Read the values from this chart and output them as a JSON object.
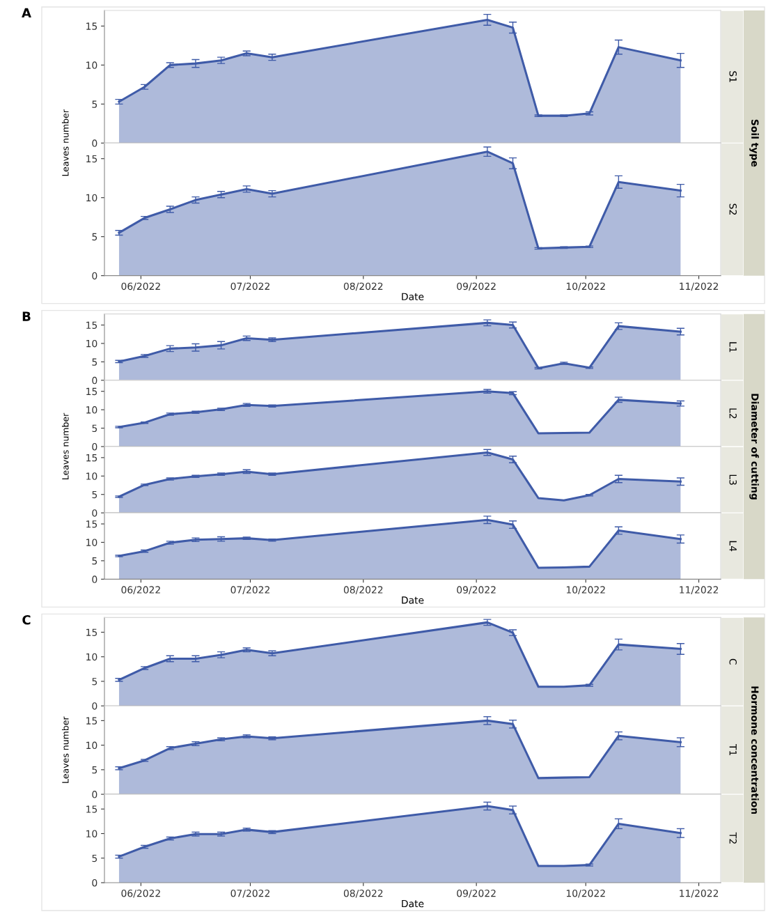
{
  "chart_data": [
    {
      "type": "area",
      "y2label": "S1",
      "ylabel": "Leaves number",
      "annotations": [
        "A",
        "Soil type"
      ],
      "x": [
        "2022-05-26",
        "2022-06-02",
        "2022-06-09",
        "2022-06-16",
        "2022-06-23",
        "2022-06-30",
        "2022-07-07",
        "2022-09-04",
        "2022-09-11",
        "2022-09-18",
        "2022-09-25",
        "2022-10-02",
        "2022-10-10",
        "2022-10-27"
      ],
      "xlim": [
        "2022-05-22",
        "2022-11-07"
      ],
      "ylim": [
        0,
        17
      ],
      "yticks": [
        0,
        5,
        10,
        15
      ],
      "tick_labels": "y",
      "series": [
        {
          "color": "#3f5ba8",
          "values": [
            5.3,
            7.2,
            10.0,
            10.2,
            10.6,
            11.5,
            11.0,
            15.8,
            14.8,
            3.5,
            3.5,
            3.8,
            12.3,
            10.6
          ],
          "errors": [
            0.3,
            0.3,
            0.3,
            0.5,
            0.4,
            0.3,
            0.4,
            0.7,
            0.7,
            0.1,
            0.1,
            0.2,
            0.9,
            0.9
          ]
        }
      ]
    },
    {
      "type": "area",
      "y2label": "S2",
      "xlabel": "Date",
      "x": [
        "2022-05-26",
        "2022-06-02",
        "2022-06-09",
        "2022-06-16",
        "2022-06-23",
        "2022-06-30",
        "2022-07-07",
        "2022-09-04",
        "2022-09-11",
        "2022-09-18",
        "2022-09-25",
        "2022-10-02",
        "2022-10-10",
        "2022-10-27"
      ],
      "xlim": [
        "2022-05-22",
        "2022-11-07"
      ],
      "xticks": [
        {
          "value": "2022-06",
          "label": "06/2022"
        },
        {
          "value": "2022-07",
          "label": "07/2022"
        },
        {
          "value": "2022-08",
          "label": "08/2022"
        },
        {
          "value": "2022-09",
          "label": "09/2022"
        },
        {
          "value": "2022-10",
          "label": "10/2022"
        },
        {
          "value": "2022-11",
          "label": "11/2022"
        }
      ],
      "ylim": [
        0,
        17
      ],
      "yticks": [
        0,
        5,
        10,
        15
      ],
      "series": [
        {
          "color": "#3f5ba8",
          "values": [
            5.5,
            7.4,
            8.5,
            9.7,
            10.4,
            11.1,
            10.5,
            15.9,
            14.4,
            3.5,
            3.6,
            3.7,
            12.0,
            10.9
          ],
          "errors": [
            0.3,
            0.2,
            0.4,
            0.4,
            0.4,
            0.4,
            0.4,
            0.6,
            0.7,
            0.1,
            0.1,
            0.1,
            0.8,
            0.8
          ]
        }
      ]
    },
    {
      "type": "area",
      "y2label": "L1",
      "ylabel": "Leaves number",
      "annotations": [
        "B",
        "Diameter of cutting"
      ],
      "x": [
        "2022-05-26",
        "2022-06-02",
        "2022-06-09",
        "2022-06-16",
        "2022-06-23",
        "2022-06-30",
        "2022-07-07",
        "2022-09-04",
        "2022-09-11",
        "2022-09-18",
        "2022-09-25",
        "2022-10-02",
        "2022-10-10",
        "2022-10-27"
      ],
      "xlim": [
        "2022-05-22",
        "2022-11-07"
      ],
      "ylim": [
        0,
        18
      ],
      "yticks": [
        0,
        5,
        10,
        15
      ],
      "tick_labels": "y",
      "series": [
        {
          "color": "#3f5ba8",
          "values": [
            5.1,
            6.6,
            8.6,
            8.9,
            9.5,
            11.4,
            11.0,
            15.6,
            15.0,
            3.3,
            4.6,
            3.4,
            14.7,
            13.2
          ],
          "errors": [
            0.3,
            0.4,
            0.8,
            1.0,
            1.0,
            0.6,
            0.5,
            0.8,
            0.8,
            0.2,
            0.3,
            0.2,
            0.9,
            0.9
          ]
        }
      ]
    },
    {
      "type": "area",
      "y2label": "L2",
      "x": [
        "2022-05-26",
        "2022-06-02",
        "2022-06-09",
        "2022-06-16",
        "2022-06-23",
        "2022-06-30",
        "2022-07-07",
        "2022-09-04",
        "2022-09-11",
        "2022-09-18",
        "2022-09-25",
        "2022-10-02",
        "2022-10-10",
        "2022-10-27"
      ],
      "xlim": [
        "2022-05-22",
        "2022-11-07"
      ],
      "ylim": [
        0,
        18
      ],
      "yticks": [
        0,
        5,
        10,
        15
      ],
      "tick_labels": "y",
      "series": [
        {
          "color": "#3f5ba8",
          "values": [
            5.3,
            6.5,
            8.8,
            9.3,
            10.1,
            11.3,
            11.0,
            15.0,
            14.5,
            3.6,
            3.7,
            3.8,
            12.7,
            11.7
          ],
          "errors": [
            0.2,
            0.2,
            0.3,
            0.3,
            0.3,
            0.4,
            0.3,
            0.5,
            0.4,
            null,
            null,
            null,
            0.7,
            0.7
          ]
        }
      ]
    },
    {
      "type": "area",
      "y2label": "L3",
      "x": [
        "2022-05-26",
        "2022-06-02",
        "2022-06-09",
        "2022-06-16",
        "2022-06-23",
        "2022-06-30",
        "2022-07-07",
        "2022-09-04",
        "2022-09-11",
        "2022-09-18",
        "2022-09-25",
        "2022-10-02",
        "2022-10-10",
        "2022-10-27"
      ],
      "xlim": [
        "2022-05-22",
        "2022-11-07"
      ],
      "ylim": [
        0,
        18
      ],
      "yticks": [
        0,
        5,
        10,
        15
      ],
      "tick_labels": "y",
      "series": [
        {
          "color": "#3f5ba8",
          "values": [
            4.4,
            7.6,
            9.2,
            9.9,
            10.5,
            11.2,
            10.5,
            16.4,
            14.5,
            4.0,
            3.4,
            4.8,
            9.2,
            8.5
          ],
          "errors": [
            0.2,
            0.2,
            0.3,
            0.3,
            0.3,
            0.5,
            0.3,
            0.8,
            0.9,
            null,
            null,
            0.2,
            1.0,
            1.0
          ]
        }
      ]
    },
    {
      "type": "area",
      "y2label": "L4",
      "xlabel": "Date",
      "x": [
        "2022-05-26",
        "2022-06-02",
        "2022-06-09",
        "2022-06-16",
        "2022-06-23",
        "2022-06-30",
        "2022-07-07",
        "2022-09-04",
        "2022-09-11",
        "2022-09-18",
        "2022-09-25",
        "2022-10-02",
        "2022-10-10",
        "2022-10-27"
      ],
      "xlim": [
        "2022-05-22",
        "2022-11-07"
      ],
      "xticks": [
        {
          "value": "2022-06",
          "label": "06/2022"
        },
        {
          "value": "2022-07",
          "label": "07/2022"
        },
        {
          "value": "2022-08",
          "label": "08/2022"
        },
        {
          "value": "2022-09",
          "label": "09/2022"
        },
        {
          "value": "2022-10",
          "label": "10/2022"
        },
        {
          "value": "2022-11",
          "label": "11/2022"
        }
      ],
      "ylim": [
        0,
        18
      ],
      "yticks": [
        0,
        5,
        10,
        15
      ],
      "series": [
        {
          "color": "#3f5ba8",
          "values": [
            6.3,
            7.6,
            9.9,
            10.7,
            10.9,
            11.1,
            10.6,
            16.1,
            14.8,
            3.1,
            3.2,
            3.4,
            13.2,
            10.9
          ],
          "errors": [
            0.2,
            0.3,
            0.4,
            0.5,
            0.6,
            0.3,
            0.3,
            1.0,
            1.0,
            null,
            null,
            null,
            1.0,
            1.1
          ]
        }
      ]
    },
    {
      "type": "area",
      "y2label": "C",
      "ylabel": "Leaves number",
      "annotations": [
        "C",
        "Hormone concentration"
      ],
      "x": [
        "2022-05-26",
        "2022-06-02",
        "2022-06-09",
        "2022-06-16",
        "2022-06-23",
        "2022-06-30",
        "2022-07-07",
        "2022-09-04",
        "2022-09-11",
        "2022-09-18",
        "2022-09-25",
        "2022-10-02",
        "2022-10-10",
        "2022-10-27"
      ],
      "xlim": [
        "2022-05-22",
        "2022-11-07"
      ],
      "ylim": [
        0,
        18
      ],
      "yticks": [
        0,
        5,
        10,
        15
      ],
      "tick_labels": "y",
      "series": [
        {
          "color": "#3f5ba8",
          "values": [
            5.3,
            7.7,
            9.6,
            9.6,
            10.4,
            11.4,
            10.7,
            17.0,
            14.9,
            3.9,
            3.9,
            4.2,
            12.5,
            11.6
          ],
          "errors": [
            0.3,
            0.3,
            0.6,
            0.6,
            0.6,
            0.4,
            0.5,
            0.6,
            0.6,
            null,
            null,
            0.2,
            1.1,
            1.1
          ]
        }
      ]
    },
    {
      "type": "area",
      "y2label": "T1",
      "x": [
        "2022-05-26",
        "2022-06-02",
        "2022-06-09",
        "2022-06-16",
        "2022-06-23",
        "2022-06-30",
        "2022-07-07",
        "2022-09-04",
        "2022-09-11",
        "2022-09-18",
        "2022-09-25",
        "2022-10-02",
        "2022-10-10",
        "2022-10-27"
      ],
      "xlim": [
        "2022-05-22",
        "2022-11-07"
      ],
      "ylim": [
        0,
        18
      ],
      "yticks": [
        0,
        5,
        10,
        15
      ],
      "tick_labels": "y",
      "series": [
        {
          "color": "#3f5ba8",
          "values": [
            5.3,
            6.9,
            9.4,
            10.3,
            11.2,
            11.8,
            11.4,
            15.0,
            14.3,
            3.3,
            3.4,
            3.5,
            11.9,
            10.6
          ],
          "errors": [
            0.3,
            0.2,
            0.3,
            0.4,
            0.3,
            0.3,
            0.3,
            0.8,
            0.8,
            null,
            null,
            null,
            0.8,
            0.9
          ]
        }
      ]
    },
    {
      "type": "area",
      "y2label": "T2",
      "xlabel": "Date",
      "x": [
        "2022-05-26",
        "2022-06-02",
        "2022-06-09",
        "2022-06-16",
        "2022-06-23",
        "2022-06-30",
        "2022-07-07",
        "2022-09-04",
        "2022-09-11",
        "2022-09-18",
        "2022-09-25",
        "2022-10-02",
        "2022-10-10",
        "2022-10-27"
      ],
      "xlim": [
        "2022-05-22",
        "2022-11-07"
      ],
      "xticks": [
        {
          "value": "2022-06",
          "label": "06/2022"
        },
        {
          "value": "2022-07",
          "label": "07/2022"
        },
        {
          "value": "2022-08",
          "label": "08/2022"
        },
        {
          "value": "2022-09",
          "label": "09/2022"
        },
        {
          "value": "2022-10",
          "label": "10/2022"
        },
        {
          "value": "2022-11",
          "label": "11/2022"
        }
      ],
      "ylim": [
        0,
        18
      ],
      "yticks": [
        0,
        5,
        10,
        15
      ],
      "series": [
        {
          "color": "#3f5ba8",
          "values": [
            5.3,
            7.3,
            9.0,
            9.9,
            9.9,
            10.8,
            10.3,
            15.6,
            14.8,
            3.4,
            3.4,
            3.6,
            12.0,
            10.1
          ],
          "errors": [
            0.3,
            0.3,
            0.3,
            0.4,
            0.4,
            0.3,
            0.3,
            0.8,
            0.8,
            null,
            null,
            0.2,
            1.0,
            0.9
          ]
        }
      ]
    }
  ]
}
